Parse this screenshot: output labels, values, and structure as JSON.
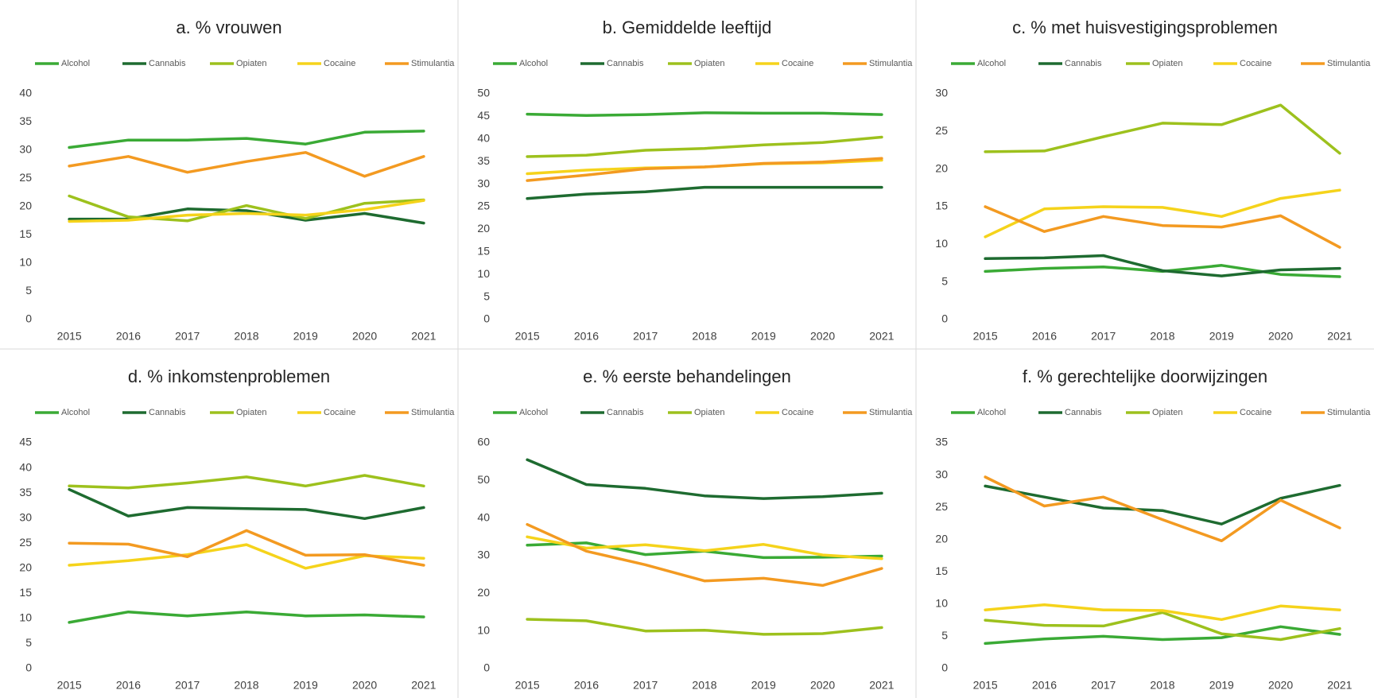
{
  "chart_data": [
    {
      "type": "line",
      "title": "a. % vrouwen",
      "categories": [
        "2015",
        "2016",
        "2017",
        "2018",
        "2019",
        "2020",
        "2021"
      ],
      "ylim": [
        0,
        40
      ],
      "yticks": [
        0,
        5,
        10,
        15,
        20,
        25,
        30,
        35,
        40
      ],
      "grid": false,
      "legend": "top",
      "series": [
        {
          "name": "Alcohol",
          "color": "#3aaa35",
          "values": [
            30.5,
            31.8,
            31.8,
            32.1,
            31.1,
            33.2,
            33.4
          ]
        },
        {
          "name": "Cannabis",
          "color": "#1e6b30",
          "values": [
            17.8,
            17.8,
            19.6,
            19.3,
            17.6,
            18.8,
            17.1
          ]
        },
        {
          "name": "Opiaten",
          "color": "#9dc11d",
          "values": [
            21.9,
            18.2,
            17.5,
            20.2,
            17.9,
            20.6,
            21.2
          ]
        },
        {
          "name": "Cocaine",
          "color": "#f5d31b",
          "values": [
            17.4,
            17.6,
            18.5,
            18.8,
            18.5,
            19.5,
            21.1
          ]
        },
        {
          "name": "Stimulantia",
          "color": "#f39a21",
          "values": [
            27.2,
            28.9,
            26.1,
            28.0,
            29.6,
            25.4,
            28.9
          ]
        }
      ]
    },
    {
      "type": "line",
      "title": "b. Gemiddelde leeftijd",
      "categories": [
        "2015",
        "2016",
        "2017",
        "2018",
        "2019",
        "2020",
        "2021"
      ],
      "ylim": [
        0,
        50
      ],
      "yticks": [
        0,
        5,
        10,
        15,
        20,
        25,
        30,
        35,
        40,
        45,
        50
      ],
      "grid": false,
      "legend": "top",
      "series": [
        {
          "name": "Alcohol",
          "color": "#3aaa35",
          "values": [
            45.5,
            45.2,
            45.4,
            45.8,
            45.7,
            45.7,
            45.4
          ]
        },
        {
          "name": "Cannabis",
          "color": "#1e6b30",
          "values": [
            26.8,
            27.8,
            28.3,
            29.3,
            29.3,
            29.3,
            29.3
          ]
        },
        {
          "name": "Opiaten",
          "color": "#9dc11d",
          "values": [
            36.1,
            36.4,
            37.5,
            37.9,
            38.7,
            39.2,
            40.4
          ]
        },
        {
          "name": "Cocaine",
          "color": "#f5d31b",
          "values": [
            32.3,
            33.1,
            33.6,
            33.8,
            34.5,
            34.7,
            35.3
          ]
        },
        {
          "name": "Stimulantia",
          "color": "#f39a21",
          "values": [
            30.8,
            32.0,
            33.4,
            33.8,
            34.6,
            34.9,
            35.7
          ]
        }
      ]
    },
    {
      "type": "line",
      "title": "c. % met huisvestigingsproblemen",
      "categories": [
        "2015",
        "2016",
        "2017",
        "2018",
        "2019",
        "2020",
        "2021"
      ],
      "ylim": [
        0,
        30
      ],
      "yticks": [
        0,
        5,
        10,
        15,
        20,
        25,
        30
      ],
      "grid": false,
      "legend": "top",
      "series": [
        {
          "name": "Alcohol",
          "color": "#3aaa35",
          "values": [
            6.4,
            6.8,
            7.0,
            6.4,
            7.2,
            6.0,
            5.7
          ]
        },
        {
          "name": "Cannabis",
          "color": "#1e6b30",
          "values": [
            8.1,
            8.2,
            8.5,
            6.5,
            5.8,
            6.6,
            6.8
          ]
        },
        {
          "name": "Opiaten",
          "color": "#9dc11d",
          "values": [
            22.3,
            22.4,
            24.3,
            26.1,
            25.9,
            28.5,
            22.1
          ]
        },
        {
          "name": "Cocaine",
          "color": "#f5d31b",
          "values": [
            11.0,
            14.7,
            15.0,
            14.9,
            13.7,
            16.1,
            17.2
          ]
        },
        {
          "name": "Stimulantia",
          "color": "#f39a21",
          "values": [
            15.0,
            11.7,
            13.7,
            12.5,
            12.3,
            13.8,
            9.6
          ]
        }
      ]
    },
    {
      "type": "line",
      "title": "d. % inkomstenproblemen",
      "categories": [
        "2015",
        "2016",
        "2017",
        "2018",
        "2019",
        "2020",
        "2021"
      ],
      "ylim": [
        0,
        45
      ],
      "yticks": [
        0,
        5,
        10,
        15,
        20,
        25,
        30,
        35,
        40,
        45
      ],
      "grid": false,
      "legend": "top",
      "series": [
        {
          "name": "Alcohol",
          "color": "#3aaa35",
          "values": [
            9.2,
            11.3,
            10.5,
            11.3,
            10.5,
            10.7,
            10.3
          ]
        },
        {
          "name": "Cannabis",
          "color": "#1e6b30",
          "values": [
            35.7,
            30.4,
            32.1,
            31.9,
            31.7,
            29.9,
            32.1
          ]
        },
        {
          "name": "Opiaten",
          "color": "#9dc11d",
          "values": [
            36.4,
            36.0,
            37.0,
            38.2,
            36.4,
            38.5,
            36.4
          ]
        },
        {
          "name": "Cocaine",
          "color": "#f5d31b",
          "values": [
            20.6,
            21.5,
            22.7,
            24.7,
            20.0,
            22.5,
            22.0
          ]
        },
        {
          "name": "Stimulantia",
          "color": "#f39a21",
          "values": [
            25.0,
            24.8,
            22.3,
            27.5,
            22.6,
            22.7,
            20.6
          ]
        }
      ]
    },
    {
      "type": "line",
      "title": "e. % eerste behandelingen",
      "categories": [
        "2015",
        "2016",
        "2017",
        "2018",
        "2019",
        "2020",
        "2021"
      ],
      "ylim": [
        0,
        60
      ],
      "yticks": [
        0,
        10,
        20,
        30,
        40,
        50,
        60
      ],
      "grid": false,
      "legend": "top",
      "series": [
        {
          "name": "Alcohol",
          "color": "#3aaa35",
          "values": [
            32.8,
            33.4,
            30.3,
            31.2,
            29.5,
            29.6,
            29.9
          ]
        },
        {
          "name": "Cannabis",
          "color": "#1e6b30",
          "values": [
            55.5,
            48.9,
            47.9,
            45.9,
            45.2,
            45.7,
            46.6
          ]
        },
        {
          "name": "Opiaten",
          "color": "#9dc11d",
          "values": [
            13.1,
            12.7,
            10.0,
            10.2,
            9.1,
            9.3,
            10.9
          ]
        },
        {
          "name": "Cocaine",
          "color": "#f5d31b",
          "values": [
            35.0,
            32.0,
            32.9,
            31.3,
            33.0,
            30.2,
            29.2
          ]
        },
        {
          "name": "Stimulantia",
          "color": "#f39a21",
          "values": [
            38.3,
            31.2,
            27.6,
            23.3,
            24.0,
            22.1,
            26.6
          ]
        }
      ]
    },
    {
      "type": "line",
      "title": "f. % gerechtelijke doorwijzingen",
      "categories": [
        "2015",
        "2016",
        "2017",
        "2018",
        "2019",
        "2020",
        "2021"
      ],
      "ylim": [
        0,
        35
      ],
      "yticks": [
        0,
        5,
        10,
        15,
        20,
        25,
        30,
        35
      ],
      "grid": false,
      "legend": "top",
      "series": [
        {
          "name": "Alcohol",
          "color": "#3aaa35",
          "values": [
            3.9,
            4.6,
            5.0,
            4.5,
            4.8,
            6.5,
            5.3
          ]
        },
        {
          "name": "Cannabis",
          "color": "#1e6b30",
          "values": [
            28.3,
            26.6,
            24.9,
            24.5,
            22.4,
            26.4,
            28.4
          ]
        },
        {
          "name": "Opiaten",
          "color": "#9dc11d",
          "values": [
            7.5,
            6.7,
            6.6,
            8.7,
            5.4,
            4.5,
            6.2
          ]
        },
        {
          "name": "Cocaine",
          "color": "#f5d31b",
          "values": [
            9.1,
            9.9,
            9.1,
            9.0,
            7.6,
            9.7,
            9.1
          ]
        },
        {
          "name": "Stimulantia",
          "color": "#f39a21",
          "values": [
            29.7,
            25.2,
            26.6,
            23.1,
            19.8,
            26.1,
            21.8
          ]
        }
      ]
    }
  ]
}
